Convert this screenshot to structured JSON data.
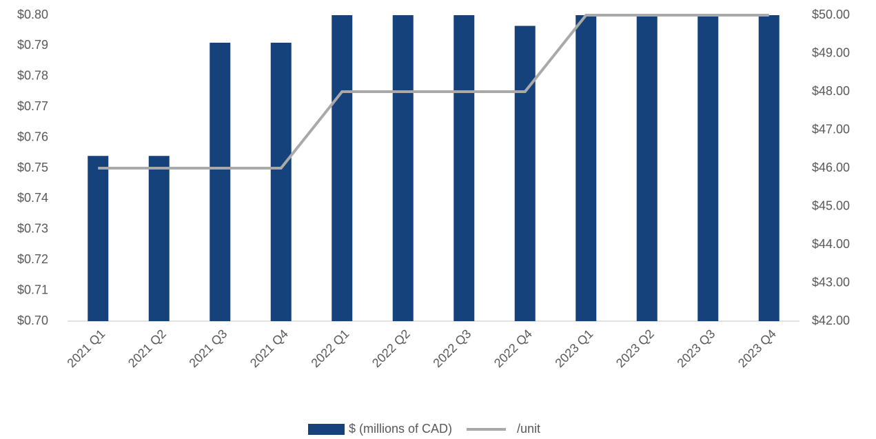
{
  "chart_data": {
    "type": "bar_line",
    "categories": [
      "2021 Q1",
      "2021 Q2",
      "2021 Q3",
      "2021 Q4",
      "2022 Q1",
      "2022 Q2",
      "2022 Q3",
      "2022 Q4",
      "2023 Q1",
      "2023 Q2",
      "2023 Q3",
      "2023 Q4"
    ],
    "series": [
      {
        "name": "$ (millions of CAD)",
        "color": "#15427a",
        "type": "bar",
        "values": [
          0.754,
          0.754,
          0.791,
          0.791,
          0.8,
          0.8,
          0.8,
          0.7965,
          0.8,
          0.8,
          0.8,
          0.8
        ]
      },
      {
        "name": "/unit",
        "color": "#a9a9a9",
        "type": "line",
        "axis": "y2",
        "values": [
          46,
          46,
          46,
          46,
          48,
          48,
          48,
          48,
          50,
          50,
          50,
          50
        ]
      }
    ],
    "ylim": [
      0.7,
      0.8
    ],
    "yticks": [
      {
        "value": 0.7,
        "label": "$0.70"
      },
      {
        "value": 0.71,
        "label": "$0.71"
      },
      {
        "value": 0.72,
        "label": "$0.72"
      },
      {
        "value": 0.73,
        "label": "$0.73"
      },
      {
        "value": 0.74,
        "label": "$0.74"
      },
      {
        "value": 0.75,
        "label": "$0.75"
      },
      {
        "value": 0.76,
        "label": "$0.76"
      },
      {
        "value": 0.77,
        "label": "$0.77"
      },
      {
        "value": 0.78,
        "label": "$0.78"
      },
      {
        "value": 0.79,
        "label": "$0.79"
      },
      {
        "value": 0.8,
        "label": "$0.80"
      }
    ],
    "y2lim": [
      42,
      50
    ],
    "y2ticks": [
      {
        "value": 42,
        "label": "$42.00"
      },
      {
        "value": 43,
        "label": "$43.00"
      },
      {
        "value": 44,
        "label": "$44.00"
      },
      {
        "value": 45,
        "label": "$45.00"
      },
      {
        "value": 46,
        "label": "$46.00"
      },
      {
        "value": 47,
        "label": "$47.00"
      },
      {
        "value": 48,
        "label": "$48.00"
      },
      {
        "value": 49,
        "label": "$49.00"
      },
      {
        "value": 50,
        "label": "$50.00"
      }
    ],
    "grid": false,
    "legend": "bottom"
  }
}
